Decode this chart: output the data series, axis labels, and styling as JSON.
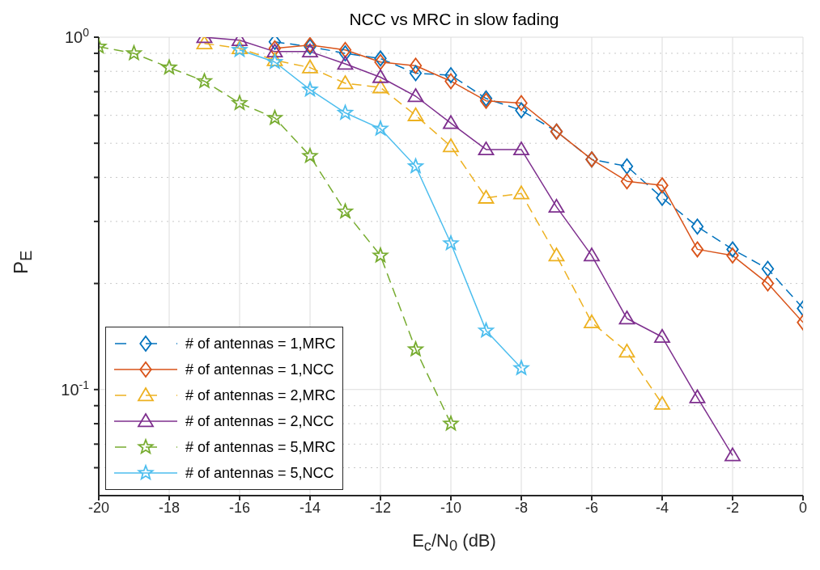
{
  "chart_data": {
    "type": "line",
    "title": "NCC vs MRC in slow fading",
    "xlabel": "E$_{c}$/N$_{0}$ (dB)",
    "ylabel": "P$_{E}$",
    "xlim": [
      -20,
      0
    ],
    "xticks": [
      -20,
      -18,
      -16,
      -14,
      -12,
      -10,
      -8,
      -6,
      -4,
      -2,
      0
    ],
    "ylim": [
      0.05,
      1
    ],
    "yticks": [
      {
        "value": 0.06,
        "label": null
      },
      {
        "value": 0.07,
        "label": null
      },
      {
        "value": 0.08,
        "label": null
      },
      {
        "value": 0.09,
        "label": null
      },
      {
        "value": 0.1,
        "label": "10$^{-1}$"
      },
      {
        "value": 0.2,
        "label": null
      },
      {
        "value": 0.3,
        "label": null
      },
      {
        "value": 0.4,
        "label": null
      },
      {
        "value": 0.5,
        "label": null
      },
      {
        "value": 0.6,
        "label": null
      },
      {
        "value": 0.7,
        "label": null
      },
      {
        "value": 0.8,
        "label": null
      },
      {
        "value": 0.9,
        "label": null
      },
      {
        "value": 1,
        "label": "10$^{0}$"
      }
    ],
    "log": "y",
    "grid": true,
    "legend": "bottom left",
    "series": [
      {
        "name": "# of antennas = 1,MRC",
        "color": "#0072bd",
        "marker": "diamond",
        "line_style": "dashed",
        "x": [
          -15,
          -14,
          -13,
          -12,
          -11,
          -10,
          -9,
          -8,
          -7,
          -6,
          -5,
          -4,
          -3,
          -2,
          -1,
          0
        ],
        "values": [
          0.97,
          0.94,
          0.9,
          0.87,
          0.79,
          0.78,
          0.67,
          0.62,
          0.54,
          0.45,
          0.43,
          0.35,
          0.29,
          0.25,
          0.22,
          0.17
        ]
      },
      {
        "name": "# of antennas = 1,NCC",
        "color": "#d95319",
        "marker": "diamond",
        "line_style": "solid",
        "x": [
          -15,
          -14,
          -13,
          -12,
          -11,
          -10,
          -9,
          -8,
          -7,
          -6,
          -5,
          -4,
          -3,
          -2,
          -1,
          0
        ],
        "values": [
          0.93,
          0.95,
          0.92,
          0.85,
          0.83,
          0.75,
          0.66,
          0.65,
          0.54,
          0.45,
          0.39,
          0.38,
          0.25,
          0.24,
          0.2,
          0.155
        ]
      },
      {
        "name": "# of antennas = 2,MRC",
        "color": "#edb120",
        "marker": "triangle",
        "line_style": "dashed",
        "x": [
          -17,
          -16,
          -15,
          -14,
          -13,
          -12,
          -11,
          -10,
          -9,
          -8,
          -7,
          -6,
          -5,
          -4
        ],
        "values": [
          0.96,
          0.93,
          0.86,
          0.82,
          0.74,
          0.72,
          0.6,
          0.49,
          0.35,
          0.36,
          0.24,
          0.155,
          0.128,
          0.091
        ]
      },
      {
        "name": "# of antennas = 2,NCC",
        "color": "#7e2f8e",
        "marker": "triangle",
        "line_style": "solid",
        "x": [
          -17,
          -16,
          -15,
          -14,
          -13,
          -12,
          -11,
          -10,
          -9,
          -8,
          -7,
          -6,
          -5,
          -4,
          -3,
          -2
        ],
        "values": [
          1.0,
          0.98,
          0.91,
          0.91,
          0.84,
          0.77,
          0.68,
          0.57,
          0.48,
          0.48,
          0.33,
          0.24,
          0.159,
          0.141,
          0.095,
          0.065
        ]
      },
      {
        "name": "# of antennas = 5,MRC",
        "color": "#77ac30",
        "marker": "star",
        "line_style": "dashed",
        "x": [
          -20,
          -19,
          -18,
          -17,
          -16,
          -15,
          -14,
          -13,
          -12,
          -11,
          -10
        ],
        "values": [
          0.94,
          0.9,
          0.82,
          0.75,
          0.65,
          0.59,
          0.46,
          0.32,
          0.24,
          0.13,
          0.08
        ]
      },
      {
        "name": "# of antennas = 5,NCC",
        "color": "#4dbeee",
        "marker": "star",
        "line_style": "solid",
        "x": [
          -16,
          -15,
          -14,
          -13,
          -12,
          -11,
          -10,
          -9,
          -8
        ],
        "values": [
          0.92,
          0.85,
          0.71,
          0.61,
          0.55,
          0.43,
          0.26,
          0.147,
          0.115
        ]
      }
    ]
  }
}
